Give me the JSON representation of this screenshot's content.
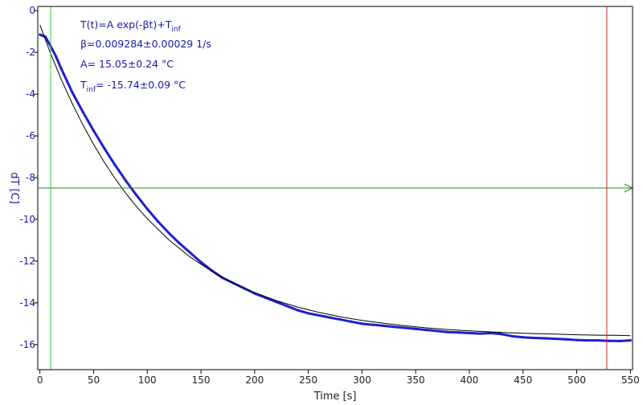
{
  "chart_data": {
    "type": "line",
    "xlabel": "Time [s]",
    "ylabel": "dT [C]",
    "xlim": [
      -2,
      552
    ],
    "ylim": [
      -17.2,
      0.2
    ],
    "xticks": [
      0,
      50,
      100,
      150,
      200,
      250,
      300,
      350,
      400,
      450,
      500,
      550
    ],
    "yticks": [
      0,
      -2,
      -4,
      -6,
      -8,
      -10,
      -12,
      -14,
      -16
    ],
    "grid": false,
    "annotations": [
      {
        "text": "T(t)=A exp(-βt)+T",
        "sub": "inf"
      },
      {
        "text": "β=0.009284±0.00029 1/s"
      },
      {
        "text": "A= 15.05±0.24 °C"
      },
      {
        "text": "T",
        "sub": "inf",
        "rest": "= -15.74±0.09 °C"
      }
    ],
    "series": [
      {
        "kind": "measured",
        "color": "#1f1fd0",
        "x": [
          0,
          5,
          10,
          15,
          20,
          30,
          40,
          50,
          60,
          70,
          80,
          90,
          100,
          110,
          120,
          130,
          140,
          150,
          160,
          170,
          180,
          190,
          200,
          210,
          220,
          230,
          240,
          250,
          260,
          270,
          280,
          290,
          300,
          310,
          320,
          330,
          340,
          350,
          360,
          370,
          380,
          390,
          400,
          410,
          420,
          430,
          440,
          450,
          460,
          470,
          480,
          490,
          500,
          510,
          520,
          530,
          540,
          550
        ],
        "y": [
          -1.15,
          -1.25,
          -1.7,
          -2.2,
          -2.8,
          -3.9,
          -4.85,
          -5.75,
          -6.6,
          -7.4,
          -8.15,
          -8.85,
          -9.5,
          -10.1,
          -10.65,
          -11.15,
          -11.6,
          -12.05,
          -12.45,
          -12.8,
          -13.05,
          -13.3,
          -13.55,
          -13.75,
          -13.95,
          -14.15,
          -14.35,
          -14.5,
          -14.6,
          -14.7,
          -14.8,
          -14.9,
          -15.0,
          -15.05,
          -15.1,
          -15.15,
          -15.2,
          -15.25,
          -15.3,
          -15.35,
          -15.4,
          -15.42,
          -15.45,
          -15.47,
          -15.45,
          -15.5,
          -15.6,
          -15.65,
          -15.68,
          -15.7,
          -15.72,
          -15.75,
          -15.78,
          -15.8,
          -15.8,
          -15.82,
          -15.83,
          -15.8
        ]
      },
      {
        "kind": "fit",
        "color": "#000000",
        "x": [
          0,
          10,
          20,
          30,
          40,
          50,
          60,
          70,
          80,
          90,
          100,
          120,
          140,
          160,
          180,
          200,
          220,
          240,
          260,
          280,
          300,
          320,
          340,
          360,
          380,
          400,
          420,
          440,
          460,
          480,
          500,
          520,
          540,
          550
        ],
        "y": [
          -0.69,
          -2.06,
          -3.31,
          -4.44,
          -5.47,
          -6.41,
          -7.27,
          -8.04,
          -8.75,
          -9.39,
          -9.97,
          -10.98,
          -11.81,
          -12.49,
          -13.05,
          -13.51,
          -13.89,
          -14.2,
          -14.46,
          -14.67,
          -14.84,
          -14.98,
          -15.1,
          -15.2,
          -15.28,
          -15.34,
          -15.39,
          -15.44,
          -15.47,
          -15.5,
          -15.53,
          -15.55,
          -15.56,
          -15.57
        ]
      }
    ],
    "markers": [
      {
        "kind": "vertical",
        "x": 10,
        "color": "#33cc33"
      },
      {
        "kind": "vertical",
        "x": 528,
        "color": "#dd2222"
      },
      {
        "kind": "horizontal-arrow",
        "y": -8.5,
        "color": "#228822"
      }
    ]
  }
}
